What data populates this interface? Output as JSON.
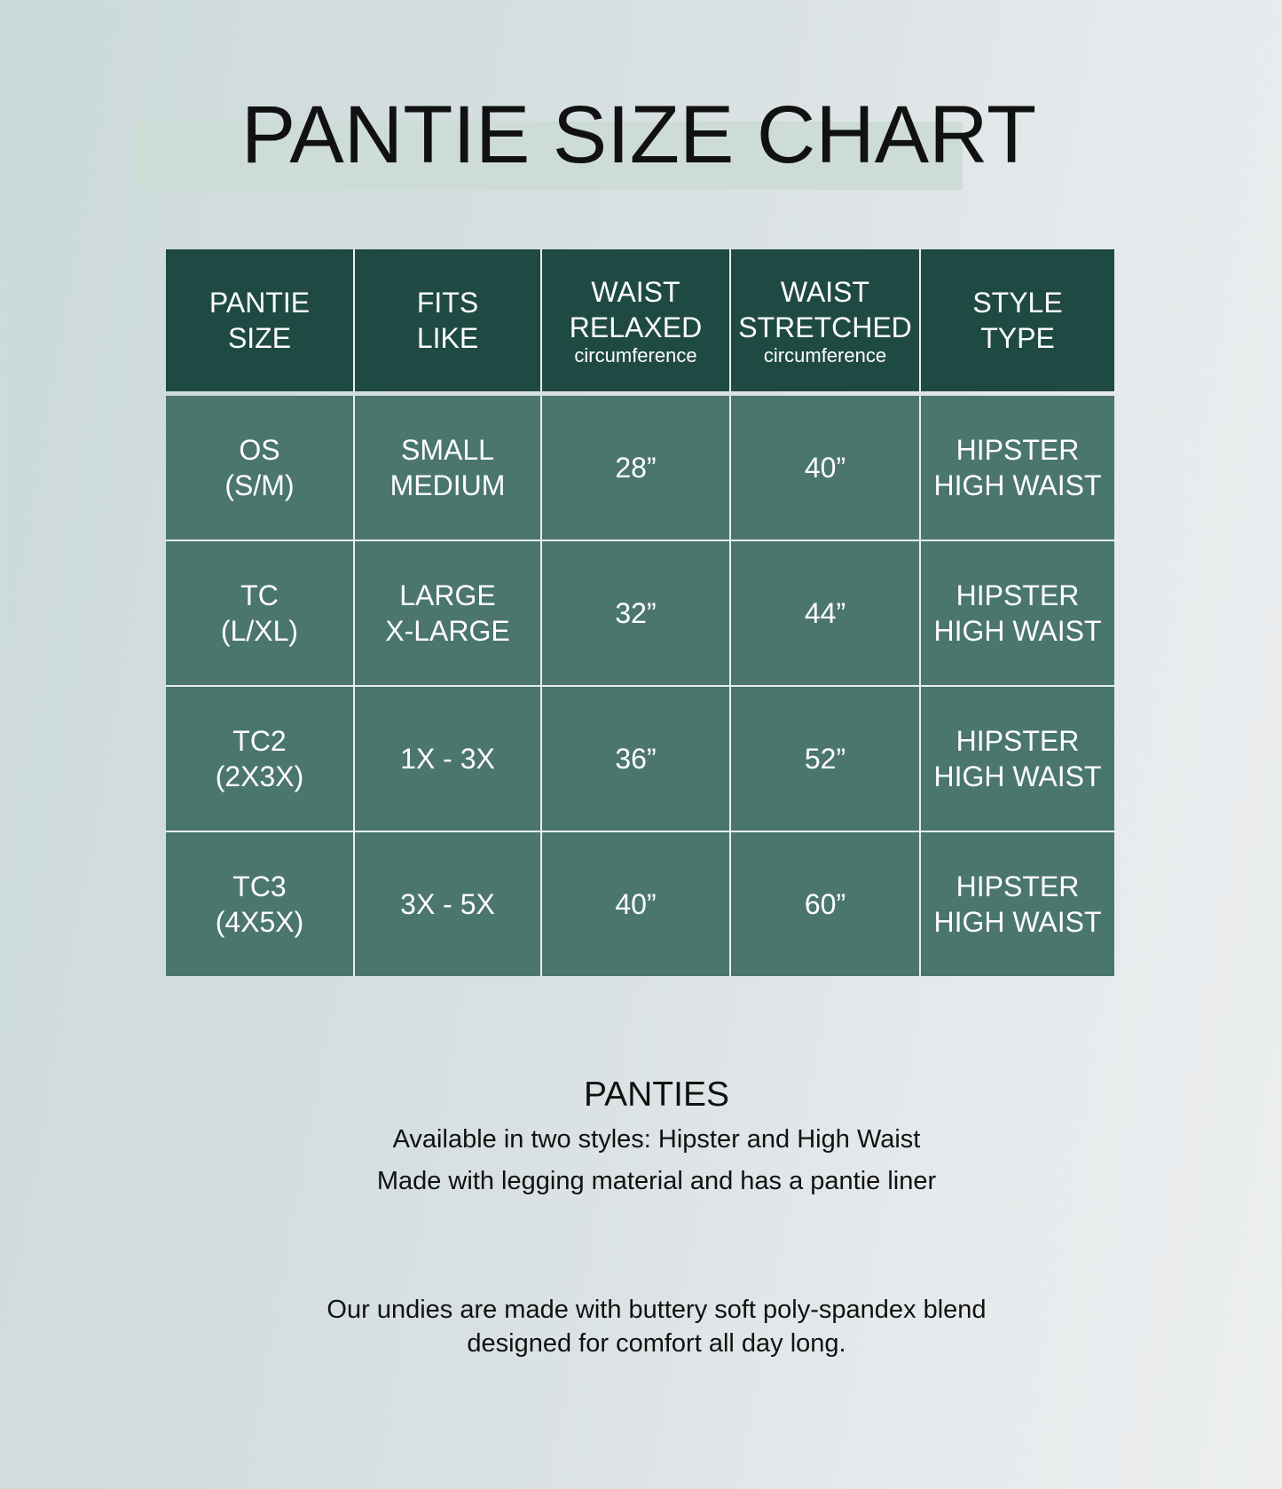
{
  "title": "PANTIE SIZE CHART",
  "table": {
    "headers": [
      {
        "line1": "PANTIE",
        "line2": "SIZE",
        "sub": ""
      },
      {
        "line1": "FITS",
        "line2": "LIKE",
        "sub": ""
      },
      {
        "line1": "WAIST",
        "line2": "RELAXED",
        "sub": "circumference"
      },
      {
        "line1": "WAIST",
        "line2": "STRETCHED",
        "sub": "circumference"
      },
      {
        "line1": "STYLE",
        "line2": "TYPE",
        "sub": ""
      }
    ],
    "rows": [
      {
        "size": [
          "OS",
          "(S/M)"
        ],
        "fits": [
          "SMALL",
          "MEDIUM"
        ],
        "relaxed": "28”",
        "stretched": "40”",
        "style": [
          "HIPSTER",
          "HIGH WAIST"
        ]
      },
      {
        "size": [
          "TC",
          "(L/XL)"
        ],
        "fits": [
          "LARGE",
          "X-LARGE"
        ],
        "relaxed": "32”",
        "stretched": "44”",
        "style": [
          "HIPSTER",
          "HIGH WAIST"
        ]
      },
      {
        "size": [
          "TC2",
          "(2X3X)"
        ],
        "fits": [
          "1X - 3X",
          ""
        ],
        "relaxed": "36”",
        "stretched": "52”",
        "style": [
          "HIPSTER",
          "HIGH WAIST"
        ]
      },
      {
        "size": [
          "TC3",
          "(4X5X)"
        ],
        "fits": [
          "3X - 5X",
          ""
        ],
        "relaxed": "40”",
        "stretched": "60”",
        "style": [
          "HIPSTER",
          "HIGH WAIST"
        ]
      }
    ]
  },
  "info": {
    "heading": "PANTIES",
    "line1": "Available in two styles: Hipster and High Waist",
    "line2": "Made with legging material and has a pantie liner",
    "note1": "Our undies are made with buttery soft poly-spandex blend",
    "note2": "designed for comfort all day long."
  },
  "colors": {
    "header": "#1f4a43",
    "row": "#4b766e",
    "highlight": "#cddcd4"
  }
}
